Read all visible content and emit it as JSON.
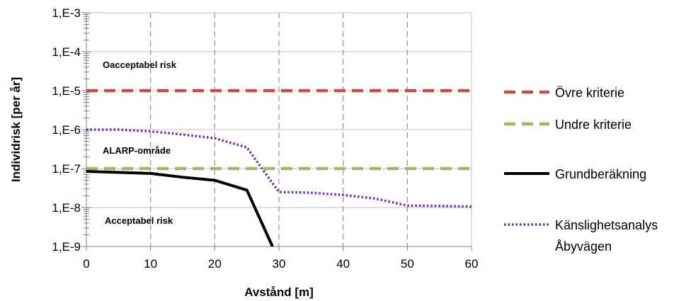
{
  "chart_data": {
    "type": "line",
    "title": "",
    "xlabel": "Avstånd [m]",
    "ylabel": "Individrisk [per år]",
    "x_ticks": [
      "0",
      "10",
      "20",
      "30",
      "40",
      "50",
      "60"
    ],
    "y_ticks": [
      "1,E-9",
      "1,E-8",
      "1,E-7",
      "1,E-6",
      "1,E-5",
      "1,E-4",
      "1,E-3"
    ],
    "xlim": [
      0,
      60
    ],
    "ylim": [
      1e-09,
      0.001
    ],
    "y_scale": "log",
    "grid": "dashed vertical gridlines, solid horizontal gridlines",
    "legend_placement": "right",
    "annotations": {
      "upper": "Oacceptabel risk",
      "middle": "ALARP-område",
      "lower": "Acceptabel risk"
    },
    "series": [
      {
        "name": "Övre kriterie",
        "color": "#c0504d",
        "style": "dashed",
        "x": [
          0,
          60
        ],
        "y": [
          1e-05,
          1e-05
        ]
      },
      {
        "name": "Undre kriterie",
        "color": "#9bbb59",
        "style": "dashed",
        "x": [
          0,
          60
        ],
        "y": [
          1e-07,
          1e-07
        ]
      },
      {
        "name": "Grundberäkning",
        "color": "#000000",
        "style": "solid",
        "x": [
          0,
          10,
          15,
          20,
          25,
          29
        ],
        "y": [
          8.5e-08,
          7.5e-08,
          6e-08,
          5e-08,
          2.8e-08,
          1e-09
        ]
      },
      {
        "name": "Känslighetsanalys Åbyvägen",
        "name_lines": [
          "Känslighetsanalys",
          "Åbyvägen"
        ],
        "color": "#7030a0",
        "style": "dotted",
        "x": [
          0,
          5,
          10,
          15,
          20,
          25,
          27,
          30,
          35,
          40,
          45,
          50,
          55,
          60
        ],
        "y": [
          1e-06,
          1e-06,
          9e-07,
          7.5e-07,
          6e-07,
          3.5e-07,
          1.2e-07,
          2.5e-08,
          2.4e-08,
          2.1e-08,
          1.7e-08,
          1.12e-08,
          1.1e-08,
          1.05e-08
        ]
      }
    ]
  }
}
